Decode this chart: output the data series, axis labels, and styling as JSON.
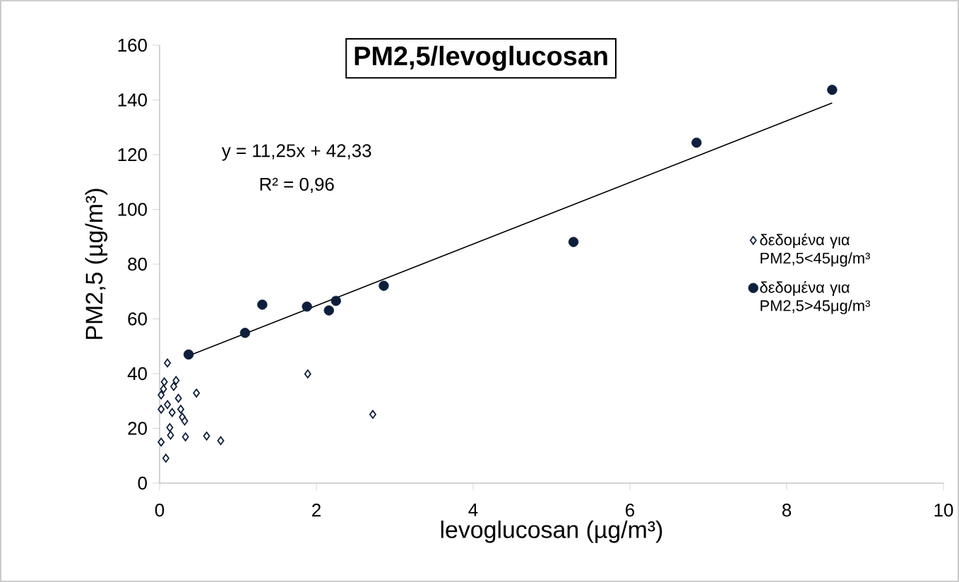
{
  "chart_data": {
    "type": "scatter",
    "title": "PM2,5/levoglucosan",
    "xlabel": "levoglucosan (µg/m³)",
    "ylabel": "PM2,5 (µg/m³)",
    "xlim": [
      0,
      10
    ],
    "ylim": [
      0,
      160
    ],
    "xticks": [
      0,
      2,
      4,
      6,
      8,
      10
    ],
    "yticks": [
      0,
      20,
      40,
      60,
      80,
      100,
      120,
      140,
      160
    ],
    "grid": false,
    "legend": "right",
    "annotations": [
      "y = 11,25x + 42,33",
      "R² = 0,96"
    ],
    "series": [
      {
        "name": "δεδομένα για PM2,5<45μg/m³",
        "type": "scatter",
        "marker": "diamond",
        "color": "#0d1f3c",
        "x": [
          0.1,
          0.02,
          0.05,
          0.06,
          0.02,
          0.02,
          0.08,
          0.13,
          0.14,
          0.16,
          0.18,
          0.21,
          0.24,
          0.27,
          0.29,
          0.32,
          0.33,
          0.47,
          0.6,
          0.78,
          1.89,
          2.72,
          0.1
        ],
        "values": [
          43.9,
          32.2,
          34.4,
          37.0,
          27.0,
          15.0,
          9.1,
          20.3,
          17.5,
          25.8,
          35.3,
          37.5,
          31.0,
          27.0,
          24.1,
          22.7,
          16.9,
          32.9,
          17.2,
          15.5,
          39.9,
          25.1,
          28.7
        ]
      },
      {
        "name": "δεδομένα για PM2,5>45μg/m³",
        "type": "scatter",
        "marker": "circle",
        "color": "#0d1f3c",
        "x": [
          0.37,
          1.09,
          1.31,
          1.88,
          2.16,
          2.25,
          2.86,
          5.28,
          6.85,
          8.58
        ],
        "values": [
          47.0,
          54.9,
          65.2,
          64.5,
          63.1,
          66.6,
          72.1,
          88.1,
          124.4,
          143.7
        ]
      },
      {
        "type": "line",
        "marker": "none",
        "color": "#000000",
        "x": [
          0.37,
          8.58
        ],
        "values": [
          46.5,
          138.9
        ]
      }
    ]
  }
}
